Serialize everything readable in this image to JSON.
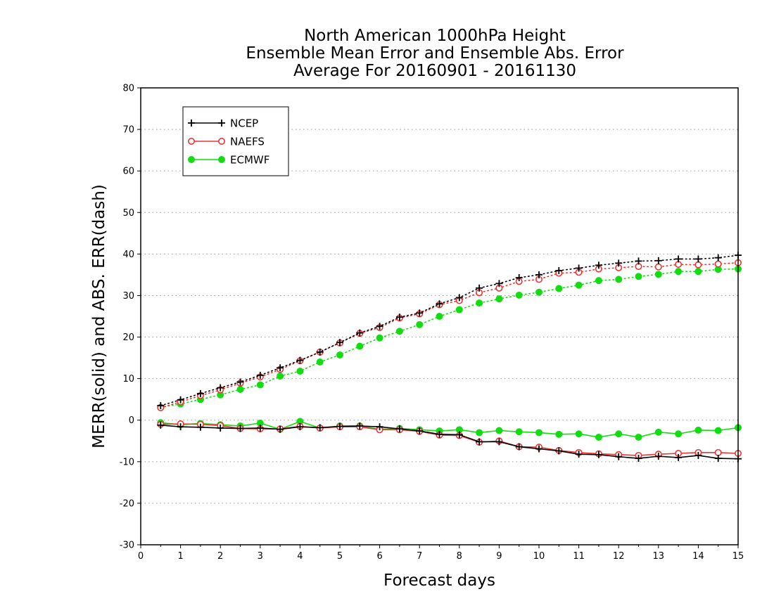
{
  "chart_data": {
    "type": "line",
    "title_lines": [
      "North American 1000hPa Height",
      "Ensemble Mean Error and Ensemble Abs. Error",
      "Average For 20160901 - 20161130"
    ],
    "xlabel": "Forecast days",
    "ylabel": "MERR(solid) and ABS. ERR(dash)",
    "xlim": [
      0,
      15
    ],
    "ylim": [
      -30,
      80
    ],
    "xticks": [
      0,
      1,
      2,
      3,
      4,
      5,
      6,
      7,
      8,
      9,
      10,
      11,
      12,
      13,
      14,
      15
    ],
    "yticks": [
      -30,
      -20,
      -10,
      0,
      10,
      20,
      30,
      40,
      50,
      60,
      70,
      80
    ],
    "grid": "horizontal dotted",
    "legend_position": "top-left",
    "x": [
      0.5,
      1,
      1.5,
      2,
      2.5,
      3,
      3.5,
      4,
      4.5,
      5,
      5.5,
      6,
      6.5,
      7,
      7.5,
      8,
      8.5,
      9,
      9.5,
      10,
      10.5,
      11,
      11.5,
      12,
      12.5,
      13,
      13.5,
      14,
      14.5,
      15
    ],
    "series": [
      {
        "name": "NCEP",
        "color": "#000000",
        "marker": "plus",
        "merr": [
          -1.2,
          -1.6,
          -1.7,
          -1.9,
          -2.0,
          -1.9,
          -2.2,
          -1.6,
          -1.8,
          -1.5,
          -1.4,
          -1.6,
          -2.1,
          -2.6,
          -3.4,
          -3.5,
          -5.2,
          -5.2,
          -6.4,
          -6.9,
          -7.4,
          -8.2,
          -8.3,
          -8.8,
          -9.2,
          -8.7,
          -9.0,
          -8.5,
          -9.2,
          -9.3
        ],
        "abs_err": [
          3.5,
          4.9,
          6.4,
          7.8,
          9.2,
          10.8,
          12.6,
          14.4,
          16.4,
          18.7,
          21.0,
          22.6,
          24.8,
          25.8,
          28.0,
          29.5,
          31.8,
          32.9,
          34.3,
          35.0,
          36.0,
          36.6,
          37.3,
          37.8,
          38.3,
          38.4,
          38.8,
          38.8,
          39.1,
          39.7
        ]
      },
      {
        "name": "NAEFS",
        "color": "#ee3333",
        "marker": "open-circle",
        "merr": [
          -1.0,
          -0.9,
          -1.0,
          -1.3,
          -2.0,
          -2.1,
          -2.1,
          -1.5,
          -1.9,
          -1.6,
          -1.6,
          -2.3,
          -2.3,
          -2.7,
          -3.6,
          -3.7,
          -5.3,
          -5.0,
          -6.4,
          -6.5,
          -7.3,
          -7.8,
          -8.1,
          -8.3,
          -8.5,
          -8.2,
          -8.0,
          -7.8,
          -7.8,
          -8.0
        ],
        "abs_err": [
          3.0,
          4.4,
          5.9,
          7.3,
          8.9,
          10.4,
          12.2,
          14.3,
          16.4,
          18.6,
          20.9,
          22.3,
          24.6,
          25.6,
          27.8,
          28.8,
          30.7,
          31.8,
          33.4,
          33.9,
          35.4,
          35.6,
          36.4,
          36.7,
          37.0,
          36.9,
          37.5,
          37.4,
          37.6,
          37.9
        ]
      },
      {
        "name": "ECMWF",
        "color": "#11dd11",
        "marker": "filled-circle",
        "merr": [
          -0.6,
          -1.1,
          -0.8,
          -1.1,
          -1.4,
          -0.7,
          -2.2,
          -0.3,
          -1.9,
          -1.4,
          -1.4,
          -2.2,
          -2.0,
          -2.3,
          -2.6,
          -2.3,
          -3.0,
          -2.5,
          -2.8,
          -3.0,
          -3.4,
          -3.3,
          -4.1,
          -3.3,
          -4.1,
          -2.9,
          -3.3,
          -2.4,
          -2.5,
          -1.8
        ],
        "abs_err": [
          3.1,
          3.9,
          5.0,
          6.1,
          7.4,
          8.5,
          10.6,
          11.8,
          14.0,
          15.7,
          17.8,
          19.8,
          21.4,
          23.0,
          25.0,
          26.6,
          28.2,
          29.2,
          30.1,
          30.8,
          31.7,
          32.5,
          33.6,
          33.9,
          34.6,
          35.1,
          35.8,
          35.8,
          36.3,
          36.4
        ]
      }
    ]
  }
}
